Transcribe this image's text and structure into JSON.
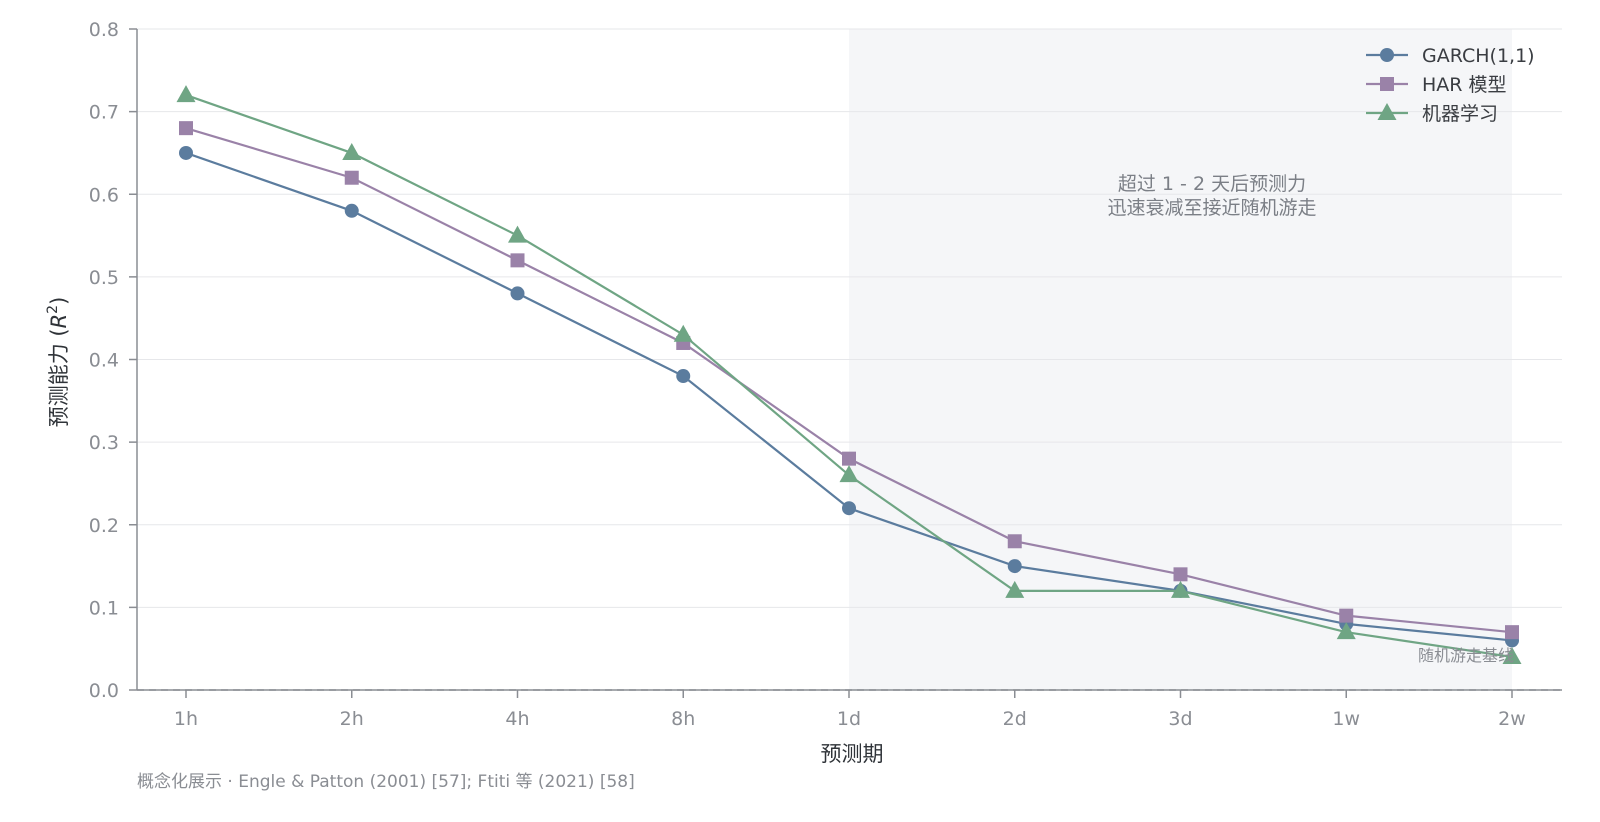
{
  "chart_data": {
    "type": "line",
    "xlabel": "预测期",
    "ylabel": "预测能力 (R²)",
    "ylabel_parts": {
      "main": "预测能力 (",
      "var": "R",
      "sup": "2",
      "close": ")"
    },
    "categories": [
      "1h",
      "2h",
      "4h",
      "8h",
      "1d",
      "2d",
      "3d",
      "1w",
      "2w"
    ],
    "ylim": [
      0,
      0.8
    ],
    "yticks": [
      0.0,
      0.1,
      0.2,
      0.3,
      0.4,
      0.5,
      0.6,
      0.7,
      0.8
    ],
    "ytick_labels": [
      "0.0",
      "0.1",
      "0.2",
      "0.3",
      "0.4",
      "0.5",
      "0.6",
      "0.7",
      "0.8"
    ],
    "grid": "horizontal",
    "legend_position": "top-right",
    "series": [
      {
        "name": "GARCH(1,1)",
        "marker": "circle",
        "color": "#5b7c9e",
        "values": [
          0.65,
          0.58,
          0.48,
          0.38,
          0.22,
          0.15,
          0.12,
          0.08,
          0.06
        ]
      },
      {
        "name": "HAR 模型",
        "marker": "square",
        "color": "#9a82a8",
        "values": [
          0.68,
          0.62,
          0.52,
          0.42,
          0.28,
          0.18,
          0.14,
          0.09,
          0.07
        ]
      },
      {
        "name": "机器学习",
        "marker": "triangle",
        "color": "#6fa584",
        "values": [
          0.72,
          0.65,
          0.55,
          0.43,
          0.26,
          0.12,
          0.12,
          0.07,
          0.04
        ]
      }
    ],
    "shaded_region": {
      "from": "1d",
      "to": "2w",
      "color": "#f5f6f8"
    },
    "annotation_lines": [
      "超过 1 - 2 天后预测力",
      "迅速衰减至接近随机游走"
    ],
    "baseline": {
      "value": 0.0,
      "label": "随机游走基线"
    },
    "footnote": "概念化展示 · Engle & Patton (2001) [57]; Ftiti 等 (2021) [58]"
  }
}
